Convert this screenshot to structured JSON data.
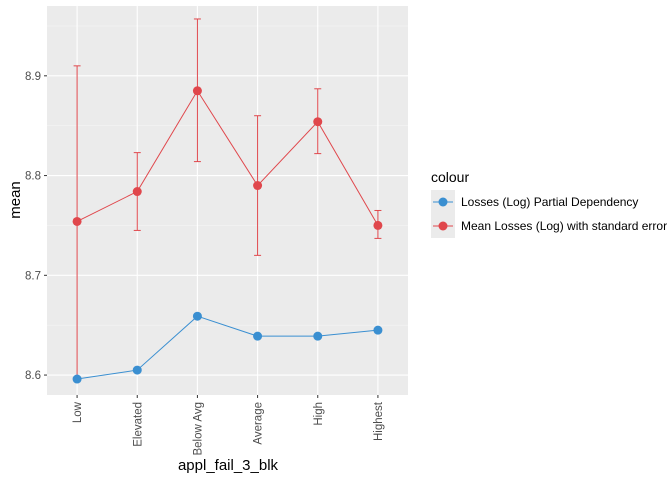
{
  "chart_data": {
    "type": "line",
    "xlabel": "appl_fail_3_blk",
    "ylabel": "mean",
    "categories": [
      "Low",
      "Elevated",
      "Below Avg",
      "Average",
      "High",
      "Highest"
    ],
    "ylim": [
      8.58,
      8.97
    ],
    "yticks": [
      "8.6",
      "8.7",
      "8.8",
      "8.9"
    ],
    "grid": true,
    "legend": {
      "title": "colour",
      "placement": "right"
    },
    "series": [
      {
        "name": "Losses (Log) Partial Dependency",
        "color": "#3a8fd1",
        "values": [
          8.596,
          8.605,
          8.659,
          8.639,
          8.639,
          8.645
        ]
      },
      {
        "name": "Mean Losses (Log) with standard error",
        "color": "#e0474c",
        "values": [
          8.754,
          8.784,
          8.885,
          8.79,
          8.854,
          8.75
        ],
        "error_low": [
          8.598,
          8.745,
          8.814,
          8.72,
          8.822,
          8.737
        ],
        "error_high": [
          8.91,
          8.823,
          8.957,
          8.86,
          8.887,
          8.765
        ]
      }
    ]
  }
}
